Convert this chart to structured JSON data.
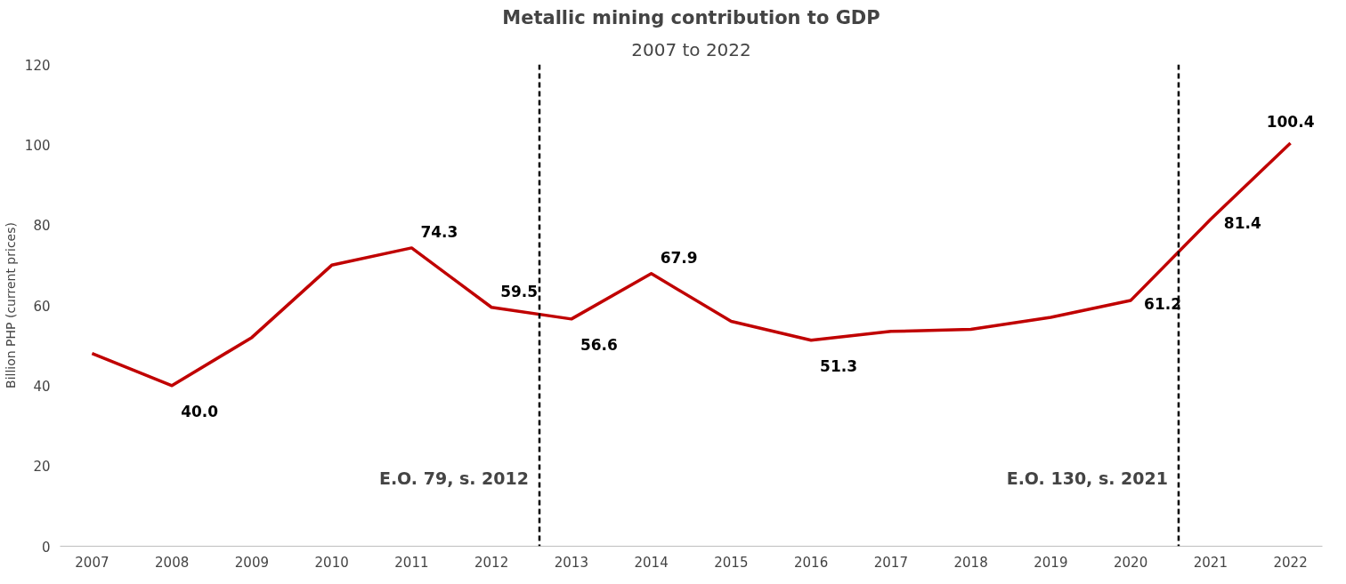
{
  "chart_data": {
    "type": "line",
    "title": "Metallic mining contribution to GDP",
    "subtitle": "2007 to 2022",
    "ylabel": "Billion PHP (current prices)",
    "x": [
      2007,
      2008,
      2009,
      2010,
      2011,
      2012,
      2013,
      2014,
      2015,
      2016,
      2017,
      2018,
      2019,
      2020,
      2021,
      2022
    ],
    "series": [
      {
        "color": "#c00000",
        "values": [
          48,
          40.0,
          52,
          70,
          74.3,
          59.5,
          56.6,
          67.9,
          56,
          51.3,
          53.5,
          54,
          57,
          61.2,
          81.4,
          100.4
        ],
        "value_labels": [
          null,
          "40.0",
          null,
          null,
          "74.3",
          "59.5",
          "56.6",
          "67.9",
          null,
          "51.3",
          null,
          null,
          null,
          "61.2",
          "81.4",
          "100.4"
        ]
      }
    ],
    "xlim": [
      2006.6,
      2022.4
    ],
    "xticks": [
      2007,
      2008,
      2009,
      2010,
      2011,
      2012,
      2013,
      2014,
      2015,
      2016,
      2017,
      2018,
      2019,
      2020,
      2021,
      2022
    ],
    "ylim": [
      0,
      120
    ],
    "yticks": [
      0,
      20,
      40,
      60,
      80,
      100,
      120
    ],
    "ref_lines": [
      {
        "axis": "x",
        "value": 2012.6,
        "label": "E.O. 79, s. 2012",
        "color": "#000000",
        "line_style": "dashed"
      },
      {
        "axis": "x",
        "value": 2020.6,
        "label": "E.O. 130, s. 2021",
        "color": "#000000",
        "line_style": "dashed"
      }
    ],
    "grid": false,
    "marker": "none",
    "line_style": "solid"
  }
}
